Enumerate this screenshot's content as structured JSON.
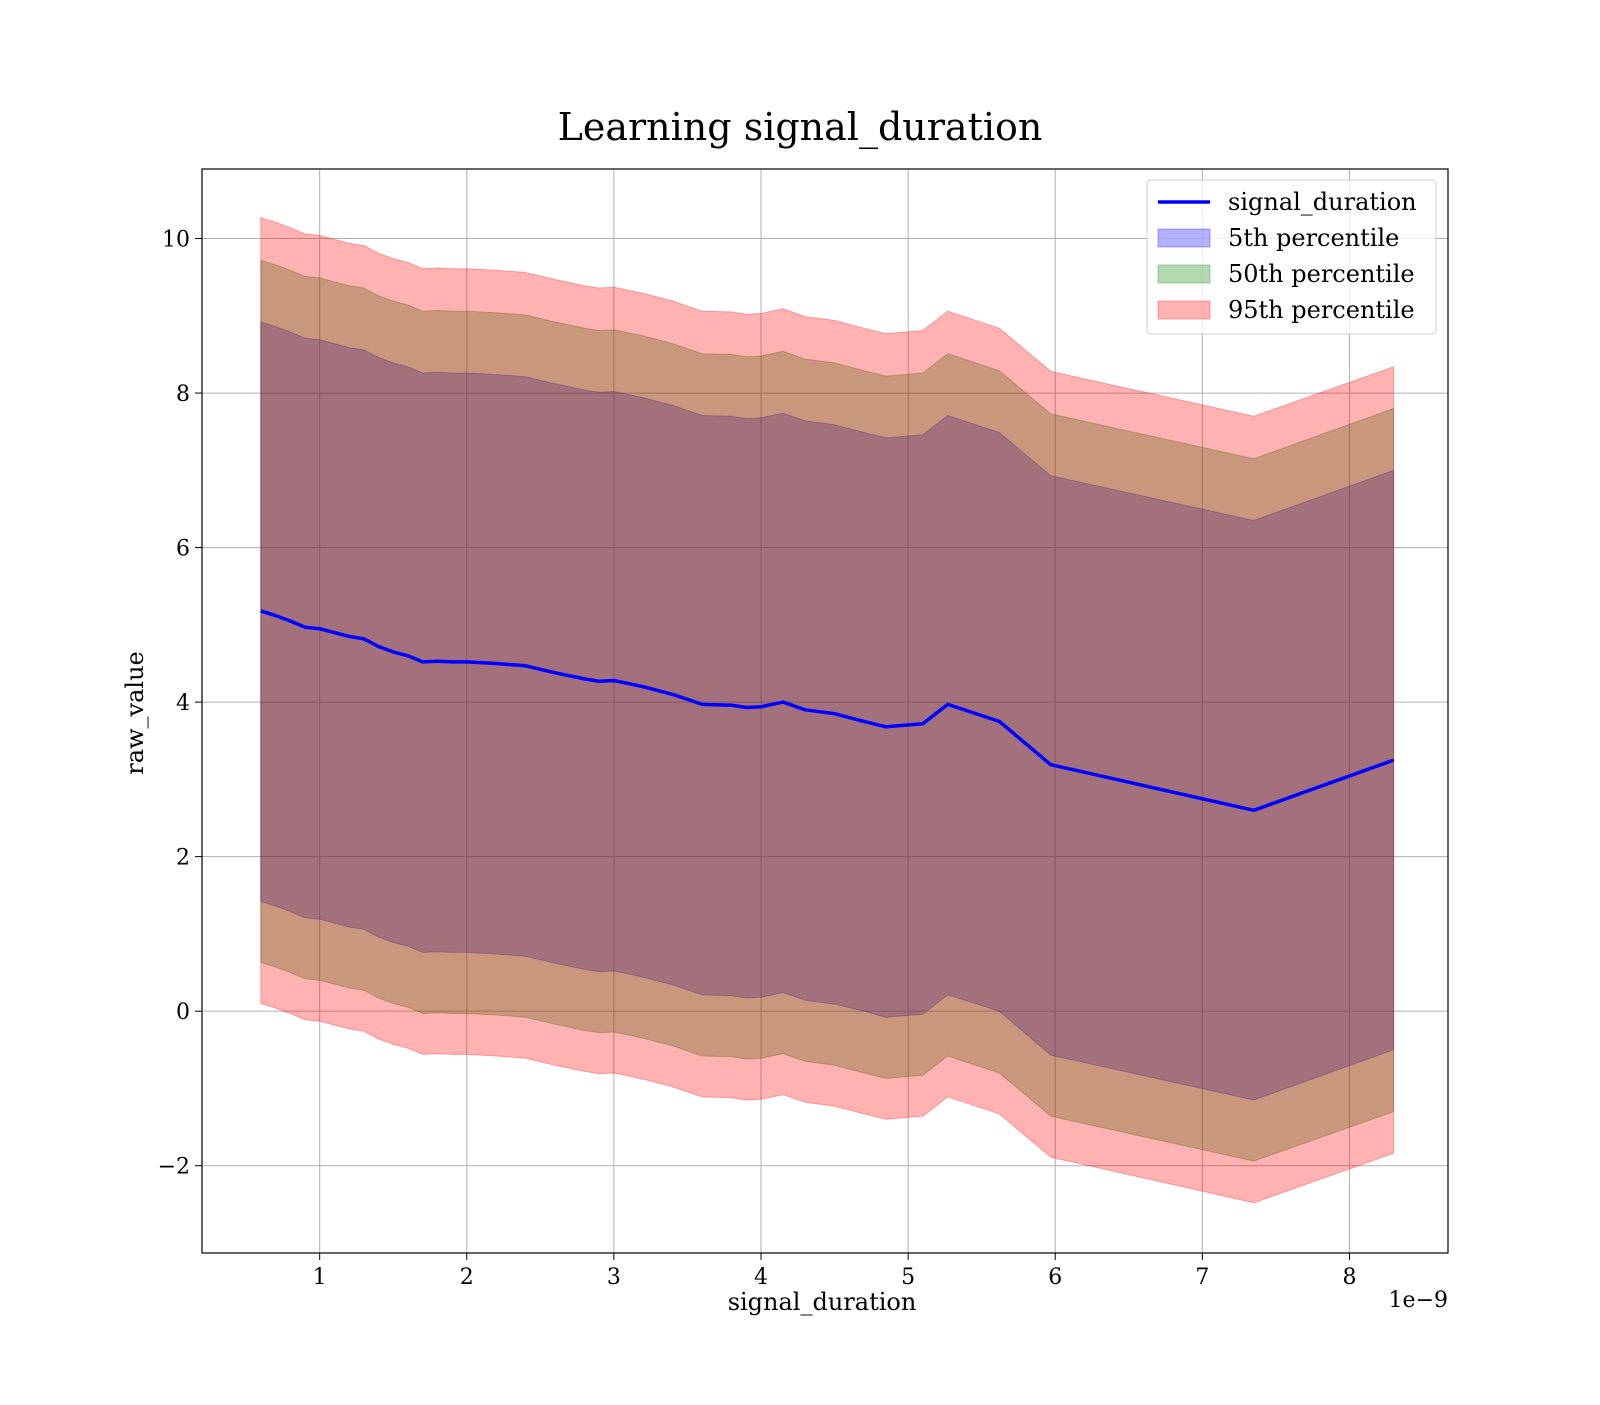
{
  "chart_data": {
    "type": "area",
    "title": "Learning signal_duration",
    "xlabel": "signal_duration",
    "ylabel": "raw_value",
    "x_offset_text": "1e−9",
    "xlim": [
      0.2,
      8.67
    ],
    "ylim": [
      -3.13,
      10.9
    ],
    "x_ticks": [
      1,
      2,
      3,
      4,
      5,
      6,
      7,
      8
    ],
    "y_ticks": [
      -2,
      0,
      2,
      4,
      6,
      8,
      10
    ],
    "y_tick_labels": [
      "−2",
      "0",
      "2",
      "4",
      "6",
      "8",
      "10"
    ],
    "grid": true,
    "legend_position": "top-right",
    "x": [
      0.6,
      0.7,
      0.8,
      0.9,
      1.0,
      1.1,
      1.2,
      1.3,
      1.4,
      1.5,
      1.6,
      1.7,
      1.8,
      1.9,
      2.0,
      2.2,
      2.4,
      2.6,
      2.8,
      2.9,
      3.0,
      3.2,
      3.4,
      3.6,
      3.8,
      3.9,
      4.0,
      4.15,
      4.3,
      4.5,
      4.7,
      4.85,
      5.1,
      5.27,
      5.62,
      5.97,
      7.35,
      8.3
    ],
    "series": [
      {
        "name": "signal_duration",
        "role": "line",
        "color": "#0000ff",
        "values": [
          5.18,
          5.12,
          5.05,
          4.97,
          4.95,
          4.9,
          4.85,
          4.82,
          4.72,
          4.65,
          4.6,
          4.52,
          4.53,
          4.52,
          4.52,
          4.5,
          4.47,
          4.38,
          4.3,
          4.27,
          4.28,
          4.2,
          4.1,
          3.97,
          3.96,
          3.93,
          3.94,
          4.0,
          3.9,
          3.85,
          3.75,
          3.68,
          3.72,
          3.97,
          3.75,
          3.19,
          2.6,
          3.25
        ]
      },
      {
        "name": "5th percentile",
        "role": "band",
        "color": "#0000ff",
        "opacity": 0.3,
        "values": [
          1.42,
          1.36,
          1.29,
          1.21,
          1.19,
          1.14,
          1.09,
          1.06,
          0.96,
          0.89,
          0.84,
          0.76,
          0.77,
          0.76,
          0.76,
          0.74,
          0.71,
          0.62,
          0.54,
          0.51,
          0.52,
          0.44,
          0.34,
          0.21,
          0.2,
          0.17,
          0.18,
          0.24,
          0.14,
          0.09,
          0.0,
          -0.08,
          -0.04,
          0.21,
          0.0,
          -0.57,
          -1.15,
          -0.5
        ],
        "values_upper": [
          8.92,
          8.86,
          8.79,
          8.71,
          8.69,
          8.64,
          8.59,
          8.56,
          8.46,
          8.39,
          8.34,
          8.26,
          8.27,
          8.26,
          8.26,
          8.24,
          8.21,
          8.12,
          8.04,
          8.01,
          8.02,
          7.94,
          7.84,
          7.71,
          7.7,
          7.67,
          7.68,
          7.74,
          7.64,
          7.59,
          7.49,
          7.42,
          7.46,
          7.71,
          7.49,
          6.93,
          6.35,
          7.0
        ]
      },
      {
        "name": "50th percentile",
        "role": "band",
        "color": "#008000",
        "opacity": 0.3,
        "values": [
          0.63,
          0.57,
          0.5,
          0.42,
          0.4,
          0.35,
          0.3,
          0.27,
          0.17,
          0.1,
          0.05,
          -0.03,
          -0.02,
          -0.03,
          -0.03,
          -0.05,
          -0.08,
          -0.17,
          -0.25,
          -0.28,
          -0.27,
          -0.35,
          -0.45,
          -0.58,
          -0.59,
          -0.62,
          -0.61,
          -0.55,
          -0.65,
          -0.7,
          -0.8,
          -0.87,
          -0.83,
          -0.58,
          -0.8,
          -1.36,
          -1.94,
          -1.3
        ],
        "values_upper": [
          9.72,
          9.66,
          9.59,
          9.51,
          9.49,
          9.44,
          9.39,
          9.36,
          9.26,
          9.19,
          9.14,
          9.06,
          9.07,
          9.06,
          9.06,
          9.04,
          9.01,
          8.92,
          8.84,
          8.81,
          8.82,
          8.74,
          8.64,
          8.51,
          8.5,
          8.47,
          8.48,
          8.54,
          8.44,
          8.39,
          8.29,
          8.22,
          8.26,
          8.51,
          8.29,
          7.73,
          7.15,
          7.8
        ]
      },
      {
        "name": "95th percentile",
        "role": "band",
        "color": "#ff0000",
        "opacity": 0.3,
        "values": [
          0.1,
          0.04,
          -0.03,
          -0.11,
          -0.13,
          -0.18,
          -0.23,
          -0.26,
          -0.36,
          -0.43,
          -0.48,
          -0.56,
          -0.55,
          -0.56,
          -0.56,
          -0.58,
          -0.61,
          -0.7,
          -0.78,
          -0.81,
          -0.8,
          -0.88,
          -0.98,
          -1.11,
          -1.12,
          -1.15,
          -1.14,
          -1.08,
          -1.18,
          -1.23,
          -1.33,
          -1.4,
          -1.36,
          -1.11,
          -1.33,
          -1.89,
          -2.48,
          -1.84
        ],
        "values_upper": [
          10.27,
          10.21,
          10.14,
          10.06,
          10.04,
          9.99,
          9.94,
          9.91,
          9.81,
          9.74,
          9.69,
          9.61,
          9.62,
          9.61,
          9.61,
          9.59,
          9.56,
          9.47,
          9.39,
          9.36,
          9.37,
          9.29,
          9.19,
          9.06,
          9.05,
          9.02,
          9.03,
          9.09,
          8.99,
          8.94,
          8.84,
          8.77,
          8.81,
          9.06,
          8.84,
          8.28,
          7.7,
          8.34
        ]
      }
    ]
  }
}
